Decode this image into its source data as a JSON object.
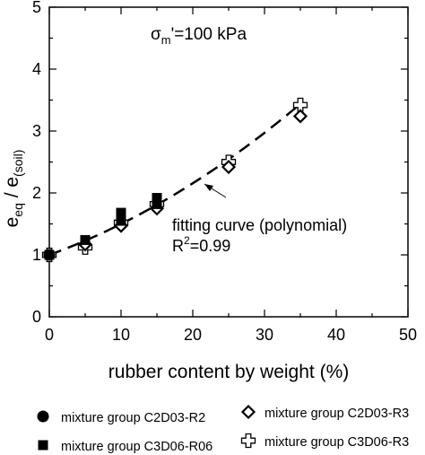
{
  "chart_data": {
    "type": "scatter",
    "annotation_title": {
      "sigma": "σ",
      "sub": "m",
      "rest": "'=100 kPa"
    },
    "xlabel": "rubber content by weight (%)",
    "ylabel": {
      "e1": "e",
      "sub1": "eq",
      "slash": " / e",
      "sub2": "(soil)"
    },
    "xlim": [
      0,
      50
    ],
    "ylim": [
      0,
      5
    ],
    "xticks": [
      "0",
      "10",
      "20",
      "30",
      "40",
      "50"
    ],
    "yticks": [
      "0",
      "1",
      "2",
      "3",
      "4",
      "5"
    ],
    "grid": false,
    "series": [
      {
        "name": "mixture group C2D03-R2",
        "marker": "circle-filled",
        "x": [
          0
        ],
        "y": [
          1.0
        ]
      },
      {
        "name": "mixture group C2D03-R3",
        "marker": "diamond-open",
        "x": [
          5,
          10,
          15,
          25,
          35
        ],
        "y": [
          1.17,
          1.47,
          1.75,
          2.42,
          3.24
        ]
      },
      {
        "name": "mixture group C3D06-R06",
        "marker": "square-filled",
        "x": [
          0,
          5,
          10,
          10,
          15,
          15
        ],
        "y": [
          1.0,
          1.24,
          1.55,
          1.68,
          1.82,
          1.92
        ]
      },
      {
        "name": "mixture group C3D06-R3",
        "marker": "plus-open",
        "x": [
          0,
          5,
          10,
          15,
          25,
          35
        ],
        "y": [
          1.0,
          1.12,
          1.52,
          1.82,
          2.5,
          3.42
        ]
      }
    ],
    "fit_curve": {
      "style": "dashed",
      "coefficients": [
        1.0,
        0.042,
        0.00079
      ],
      "x_range": [
        0,
        35
      ]
    },
    "annotation_fit": {
      "line1": "fitting curve (polynomial)",
      "r_label": "R",
      "r_sup": "2",
      "r_value": "=0.99"
    },
    "legend": [
      {
        "label": "mixture group C2D03-R2",
        "marker": "circle-filled"
      },
      {
        "label": "mixture group C2D03-R3",
        "marker": "diamond-open"
      },
      {
        "label": "mixture group C3D06-R06",
        "marker": "square-filled"
      },
      {
        "label": "mixture group C3D06-R3",
        "marker": "plus-open"
      }
    ],
    "legend_placement": "below"
  }
}
